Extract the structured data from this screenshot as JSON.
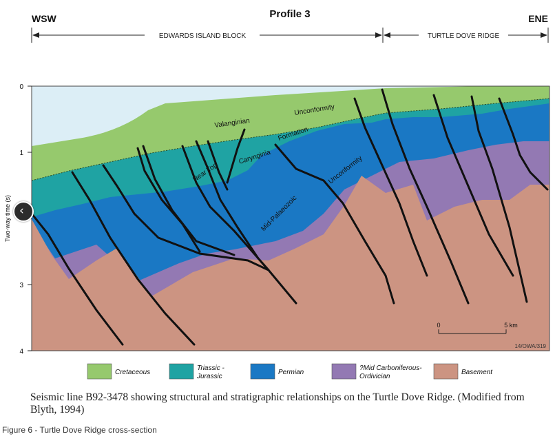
{
  "figure": {
    "title": "Profile 3",
    "left_end": "WSW",
    "right_end": "ENE",
    "block_left": "EDWARDS ISLAND BLOCK",
    "block_right": "TURTLE DOVE RIDGE",
    "y_axis_label": "Two-way time (s)",
    "y_ticks": [
      "0",
      "1",
      "2",
      "3",
      "4"
    ],
    "scale_start": "0",
    "scale_end": "5 km",
    "ref_code": "14/OWA/319",
    "annotations": {
      "valanginian": "Valanginian",
      "unconformity_top": "Unconformity",
      "near_top": "Near Top",
      "cattamarra": "Carynginia",
      "formation": "Formation",
      "unconformity_mid": "Unconformity",
      "mid_palaeozoic": "Mid-Palaeozoic"
    },
    "colors": {
      "cretaceous": "#96c96d",
      "triassic": "#1fa3a3",
      "permian": "#1a78c4",
      "carboniferous": "#9379b3",
      "basement": "#cc9482",
      "water": "#dceef6"
    }
  },
  "legend": [
    {
      "label": "Cretaceous",
      "color": "#96c96d"
    },
    {
      "label": "Triassic - Jurassic",
      "color": "#1fa3a3"
    },
    {
      "label": "Permian",
      "color": "#1a78c4"
    },
    {
      "label": "?Mid Carboniferous- Ordivician",
      "color": "#9379b3"
    },
    {
      "label": "Basement",
      "color": "#cc9482"
    }
  ],
  "caption": "Seismic line B92-3478 showing structural and stratigraphic relationships on the Turtle Dove Ridge. (Modified from Blyth, 1994)",
  "figure_caption": "Figure 6 - Turtle Dove Ridge cross-section",
  "nav": {
    "prev_icon": "chevron-left-icon"
  }
}
